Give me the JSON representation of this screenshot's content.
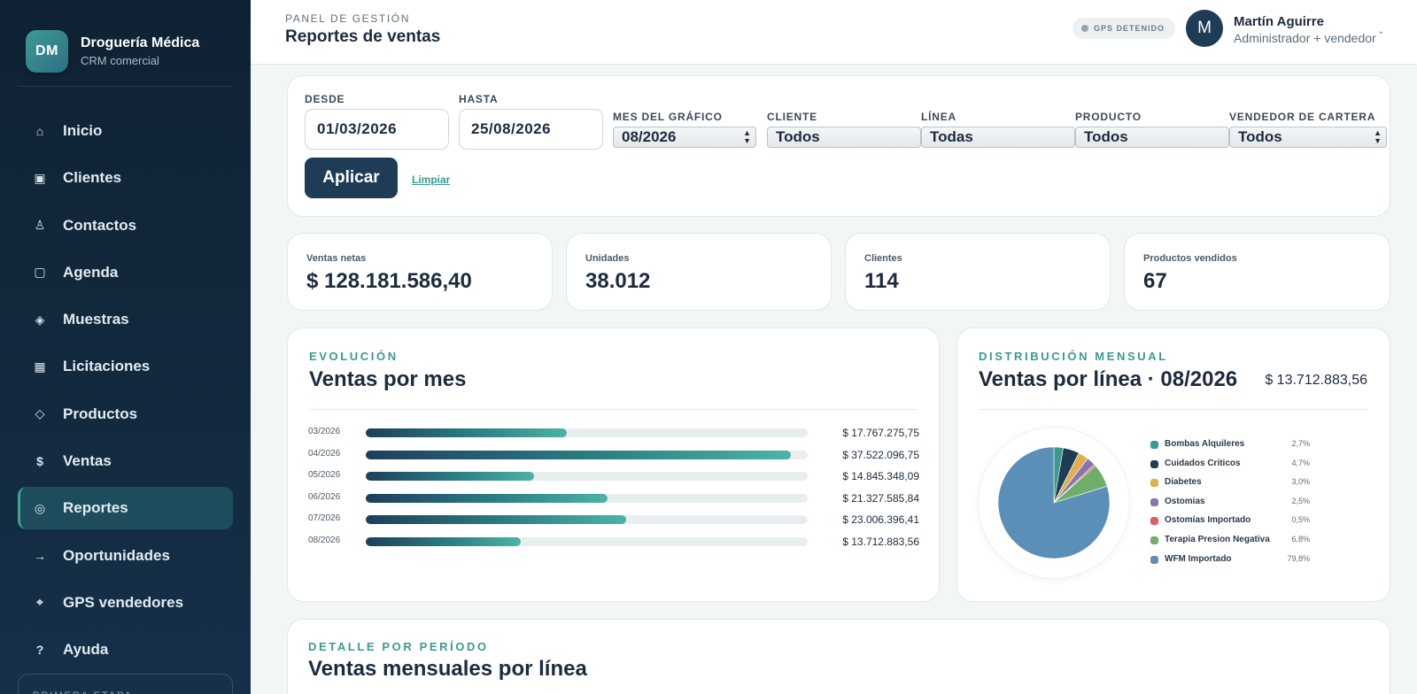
{
  "brand": {
    "initials": "DM",
    "name": "Droguería Médica",
    "subtitle": "CRM comercial"
  },
  "nav": [
    {
      "icon": "home-icon",
      "glyph": "⌂",
      "label": "Inicio"
    },
    {
      "icon": "building-icon",
      "glyph": "▣",
      "label": "Clientes"
    },
    {
      "icon": "person-icon",
      "glyph": "♙",
      "label": "Contactos"
    },
    {
      "icon": "calendar-icon",
      "glyph": "▢",
      "label": "Agenda"
    },
    {
      "icon": "diamond-icon",
      "glyph": "◈",
      "label": "Muestras"
    },
    {
      "icon": "document-icon",
      "glyph": "▦",
      "label": "Licitaciones"
    },
    {
      "icon": "box-icon",
      "glyph": "◇",
      "label": "Productos"
    },
    {
      "icon": "dollar-icon",
      "glyph": "$",
      "label": "Ventas"
    },
    {
      "icon": "report-icon",
      "glyph": "◎",
      "label": "Reportes",
      "active": true
    },
    {
      "icon": "arrow-right-icon",
      "glyph": "→",
      "label": "Oportunidades"
    },
    {
      "icon": "crosshair-icon",
      "glyph": "⌖",
      "label": "GPS vendedores"
    },
    {
      "icon": "help-icon",
      "glyph": "?",
      "label": "Ayuda"
    }
  ],
  "sidebar_footer": "PRIMERA ETAPA",
  "header": {
    "eyebrow": "PANEL DE GESTIÓN",
    "title": "Reportes de ventas",
    "gps_status": "GPS DETENIDO",
    "user_initial": "M",
    "user_name": "Martín Aguirre",
    "user_role": "Administrador + vendedor"
  },
  "filters": {
    "desde_label": "DESDE",
    "desde_value": "01/03/2026",
    "hasta_label": "HASTA",
    "hasta_value": "25/08/2026",
    "mes_label": "MES DEL GRÁFICO",
    "mes_value": "08/2026",
    "cliente_label": "CLIENTE",
    "cliente_value": "Todos",
    "linea_label": "LÍNEA",
    "linea_value": "Todas",
    "producto_label": "PRODUCTO",
    "producto_value": "Todos",
    "vendedor_label": "VENDEDOR DE CARTERA",
    "vendedor_value": "Todos",
    "apply_label": "Aplicar",
    "clear_label": "Limpiar"
  },
  "kpis": [
    {
      "label": "Ventas netas",
      "value": "$ 128.181.586,40"
    },
    {
      "label": "Unidades",
      "value": "38.012"
    },
    {
      "label": "Clientes",
      "value": "114"
    },
    {
      "label": "Productos vendidos",
      "value": "67"
    }
  ],
  "evolution": {
    "eyebrow": "EVOLUCIÓN",
    "title": "Ventas por mes"
  },
  "distribution": {
    "eyebrow": "DISTRIBUCIÓN MENSUAL",
    "title": "Ventas por línea · 08/2026",
    "total": "$ 13.712.883,56"
  },
  "detail": {
    "eyebrow": "DETALLE POR PERÍODO",
    "title": "Ventas mensuales por línea"
  },
  "chart_data": [
    {
      "type": "bar",
      "orientation": "horizontal",
      "title": "Ventas por mes",
      "categories": [
        "03/2026",
        "04/2026",
        "05/2026",
        "06/2026",
        "07/2026",
        "08/2026"
      ],
      "values": [
        17767275.75,
        37522096.75,
        14845348.09,
        21327585.84,
        23006396.41,
        13712883.56
      ],
      "value_labels": [
        "$ 17.767.275,75",
        "$ 37.522.096,75",
        "$ 14.845.348,09",
        "$ 21.327.585,84",
        "$ 23.006.396,41",
        "$ 13.712.883,56"
      ],
      "xlim": [
        0,
        39000000
      ],
      "grid": false
    },
    {
      "type": "pie",
      "title": "Ventas por línea · 08/2026",
      "legend_position": "right",
      "slices": [
        {
          "name": "Bombas Alquileres",
          "pct": 2.7,
          "pct_label": "2,7%",
          "color": "#3a9a8d"
        },
        {
          "name": "Cuidados Criticos",
          "pct": 4.7,
          "pct_label": "4,7%",
          "color": "#1f3c57"
        },
        {
          "name": "Diabetes",
          "pct": 3.0,
          "pct_label": "3,0%",
          "color": "#e0b050"
        },
        {
          "name": "Ostomias",
          "pct": 2.5,
          "pct_label": "2,5%",
          "color": "#8a73b3"
        },
        {
          "name": "Ostomías Importado",
          "pct": 0.5,
          "pct_label": "0,5%",
          "color": "#d9615f"
        },
        {
          "name": "Terapia Presion Negativa",
          "pct": 6.8,
          "pct_label": "6,8%",
          "color": "#6fae6a"
        },
        {
          "name": "WFM Importado",
          "pct": 79.8,
          "pct_label": "79,8%",
          "color": "#5b8fb7"
        }
      ]
    }
  ]
}
